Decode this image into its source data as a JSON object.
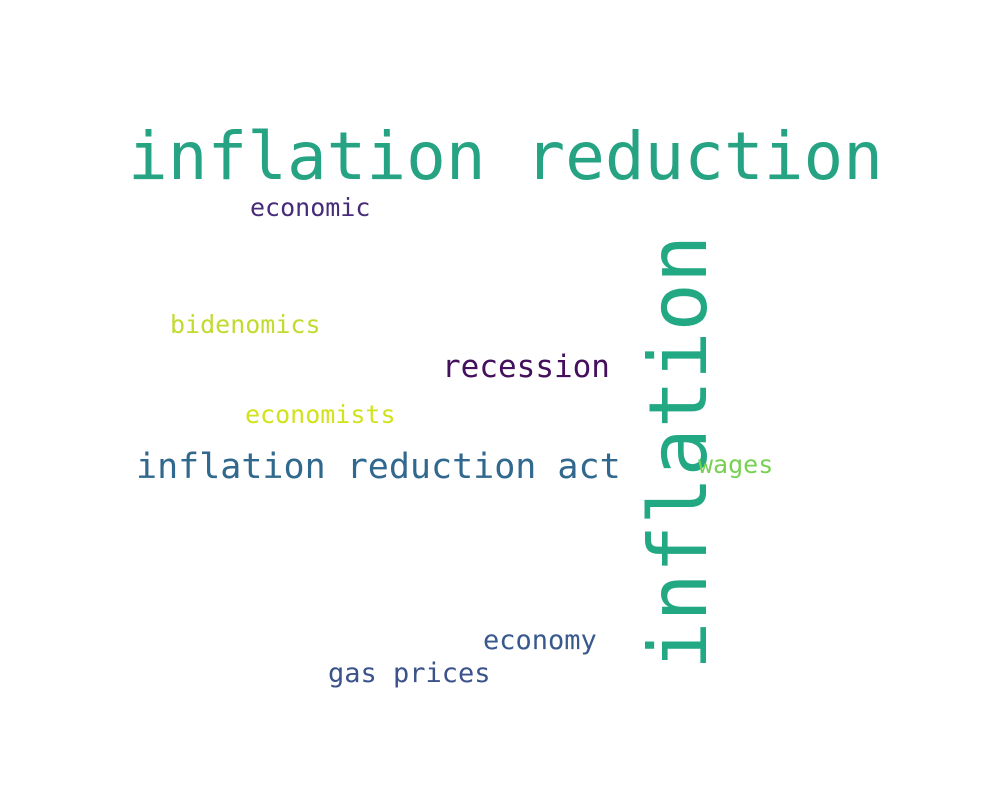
{
  "words": {
    "inflation_reduction": {
      "text": "inflation reduction",
      "color": "#25a383"
    },
    "inflation": {
      "text": "inflation",
      "color": "#23a884"
    },
    "economic": {
      "text": "economic",
      "color": "#472c7a"
    },
    "bidenomics": {
      "text": "bidenomics",
      "color": "#c3da2f"
    },
    "recession": {
      "text": "recession",
      "color": "#440f5c"
    },
    "economists": {
      "text": "economists",
      "color": "#d2e21b"
    },
    "inflation_reduction_act": {
      "text": "inflation reduction act",
      "color": "#31688e"
    },
    "wages": {
      "text": "wages",
      "color": "#77d153"
    },
    "economy": {
      "text": "economy",
      "color": "#38598c"
    },
    "gas_prices": {
      "text": "gas prices",
      "color": "#3b528b"
    }
  }
}
